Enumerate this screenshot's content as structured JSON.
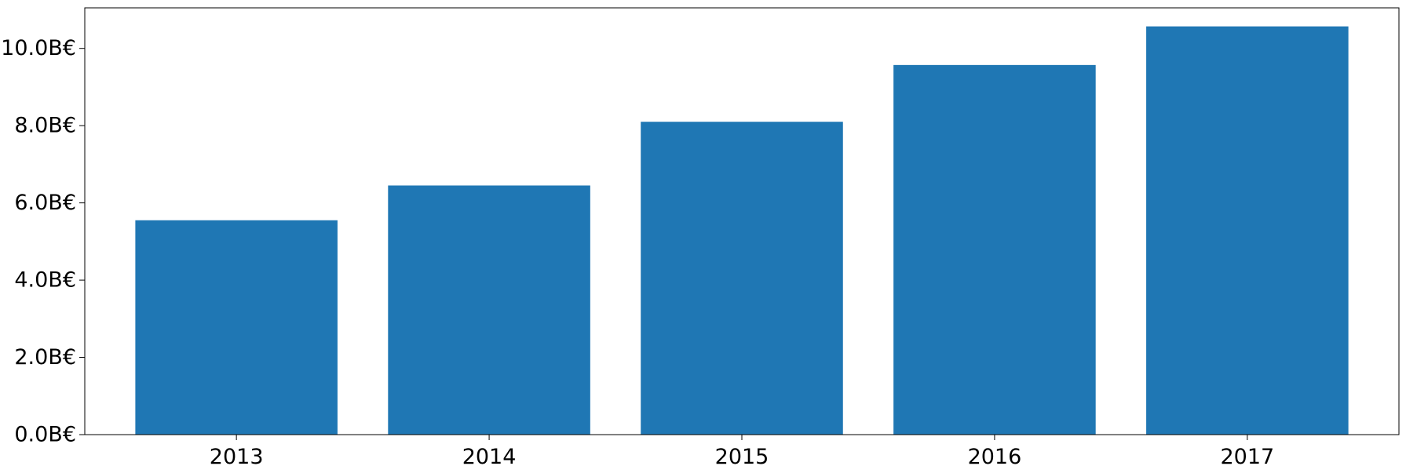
{
  "chart_data": {
    "type": "bar",
    "title": "",
    "xlabel": "",
    "ylabel": "",
    "categories": [
      "2013",
      "2014",
      "2015",
      "2016",
      "2017"
    ],
    "values": [
      5.55,
      6.45,
      8.1,
      9.57,
      10.57
    ],
    "value_unit": "B€",
    "ylim": [
      0,
      11.05
    ],
    "yticks": [
      0,
      2,
      4,
      6,
      8,
      10
    ],
    "ytick_labels": [
      "0.0B€",
      "2.0B€",
      "4.0B€",
      "6.0B€",
      "8.0B€",
      "10.0B€"
    ],
    "grid": false,
    "legend": "none",
    "bar_color": "#1f77b4"
  }
}
